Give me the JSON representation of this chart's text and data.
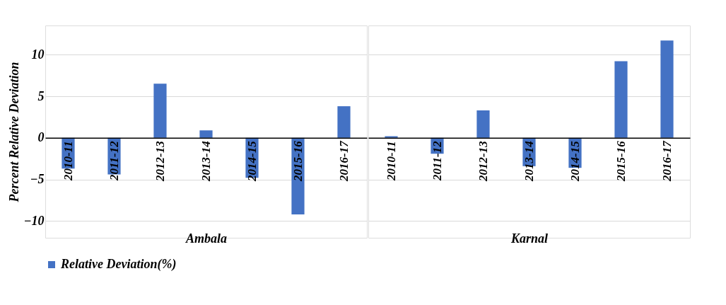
{
  "chart_data": [
    {
      "type": "bar",
      "ylabel": "Percent Relative Deviation",
      "xlabel": "Ambala",
      "categories": [
        "2010-11",
        "2011-12",
        "2012-13",
        "2013-14",
        "2014-15",
        "2015-16",
        "2016-17"
      ],
      "series": [
        {
          "name": "Relative Deviation(%)",
          "color": "#4472c4",
          "values": [
            -3.7,
            -4.4,
            6.5,
            0.9,
            -4.8,
            -9.2,
            3.8
          ]
        }
      ],
      "ylim": [
        -12,
        13.5
      ],
      "yticks": [
        -10,
        -5,
        0,
        5,
        10
      ],
      "grid": "y",
      "legend": "bottom"
    },
    {
      "type": "bar",
      "xlabel": "Karnal",
      "categories": [
        "2010-11",
        "2011-12",
        "2012-13",
        "2013-14",
        "2014-15",
        "2015-16",
        "2016-17"
      ],
      "series": [
        {
          "color": "#4472c4",
          "values": [
            0.2,
            -1.9,
            3.3,
            -3.4,
            -3.6,
            9.2,
            11.7
          ]
        }
      ],
      "ylim": [
        -12,
        13.5
      ],
      "yticks": [
        -10,
        -5,
        0,
        5,
        10
      ],
      "grid": "y",
      "tick_labels": "x"
    }
  ]
}
